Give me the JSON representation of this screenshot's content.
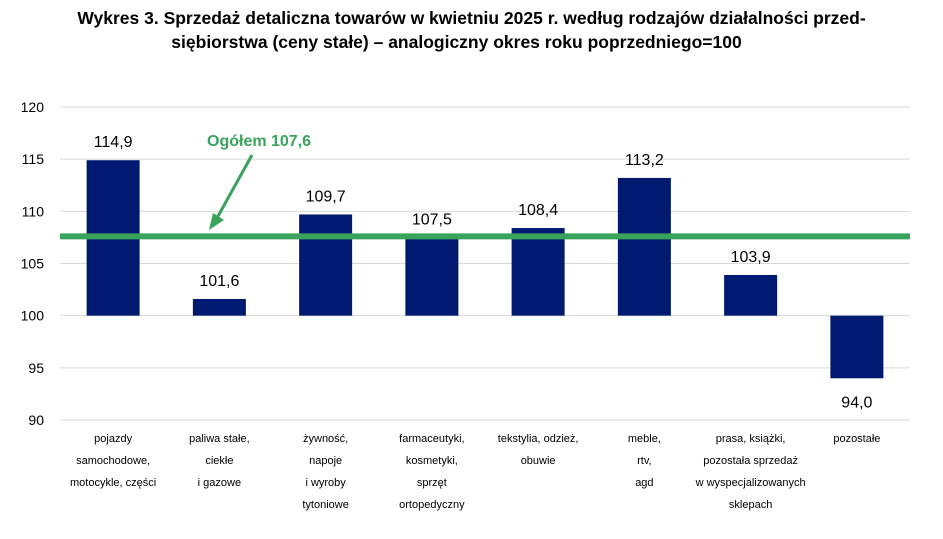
{
  "title_line1": "Wykres 3. Sprzedaż detaliczna towarów w kwietniu 2025 r. według rodzajów działalności przed-",
  "title_line2": "siębiorstwa (ceny stałe) – analogiczny okres roku poprzedniego=100",
  "chart_data": {
    "type": "bar",
    "title": "Wykres 3. Sprzedaż detaliczna towarów w kwietniu 2025 r. według rodzajów działalności przedsiębiorstwa (ceny stałe) – analogiczny okres roku poprzedniego=100",
    "xlabel": "",
    "ylabel": "",
    "ylim": [
      90,
      120
    ],
    "baseline": 100,
    "yticks": [
      "120",
      "115",
      "110",
      "105",
      "100",
      "95",
      "90"
    ],
    "categories": [
      [
        "pojazdy",
        "samochodowe,",
        "motocykle,  części"
      ],
      [
        "paliwa stałe,",
        "ciekłe",
        "i gazowe"
      ],
      [
        "żywność,",
        "napoje",
        "i wyroby",
        "tytoniowe"
      ],
      [
        "farmaceutyki,",
        "kosmetyki,",
        "sprzęt",
        "ortopedyczny"
      ],
      [
        "tekstylia, odzież,",
        "obuwie"
      ],
      [
        "meble,",
        "rtv,",
        "agd"
      ],
      [
        "prasa, książki,",
        "pozostała sprzedaż",
        "w wyspecjalizowanych",
        "sklepach"
      ],
      [
        "pozostałe"
      ]
    ],
    "values": [
      114.9,
      101.6,
      109.7,
      107.5,
      108.4,
      113.2,
      103.9,
      94.0
    ],
    "data_labels": [
      "114,9",
      "101,6",
      "109,7",
      "107,5",
      "108,4",
      "113,2",
      "103,9",
      "94,0"
    ],
    "reference_line": {
      "value": 107.6,
      "label": "Ogółem 107,6"
    },
    "grid": true,
    "legend": "none",
    "colors": {
      "bar": "#001a72",
      "reference": "#3aa35b",
      "grid": "#d9d9d9"
    }
  }
}
